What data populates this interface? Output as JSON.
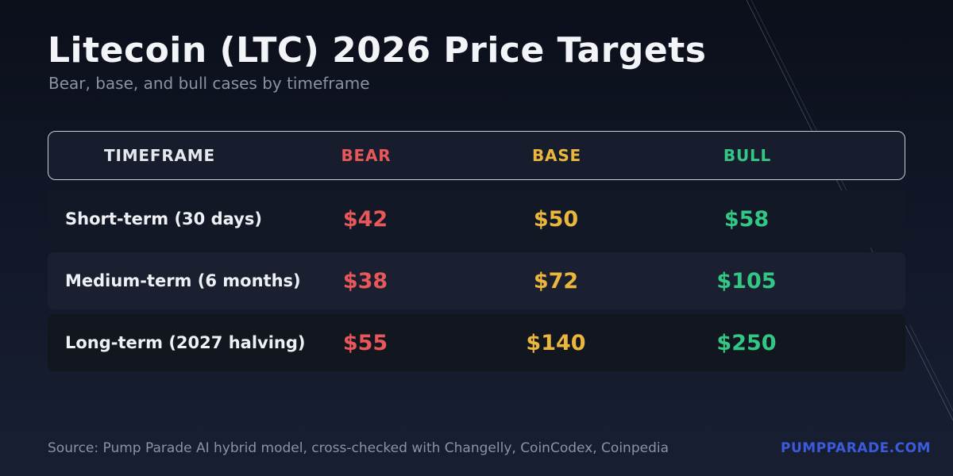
{
  "title": "Litecoin (LTC) 2026 Price Targets",
  "subtitle": "Bear, base, and bull cases by timeframe",
  "colors": {
    "bear": "#e8585a",
    "base": "#eab73c",
    "bull": "#33c785",
    "brand": "#3b5bdb"
  },
  "chart_data": {
    "type": "table",
    "headers": [
      "TIMEFRAME",
      "BEAR",
      "BASE",
      "BULL"
    ],
    "rows": [
      {
        "timeframe": "Short-term (30 days)",
        "bear": "$42",
        "base": "$50",
        "bull": "$58"
      },
      {
        "timeframe": "Medium-term (6 months)",
        "bear": "$38",
        "base": "$72",
        "bull": "$105"
      },
      {
        "timeframe": "Long-term (2027 halving)",
        "bear": "$55",
        "base": "$140",
        "bull": "$250"
      }
    ]
  },
  "footer": {
    "source": "Source: Pump Parade AI hybrid model, cross-checked with Changelly, CoinCodex, Coinpedia",
    "brand": "PUMPPARADE.COM"
  }
}
